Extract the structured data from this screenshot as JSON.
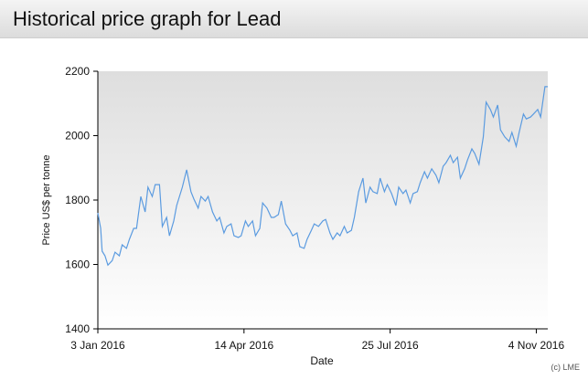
{
  "header": {
    "title": "Historical price graph for Lead"
  },
  "chart_data": {
    "type": "line",
    "y_label": "Price US$ per tonne",
    "x_label": "Date",
    "credit": "(c) LME",
    "color": "#5b9be0",
    "grid": false,
    "ylim": [
      1400,
      2200
    ],
    "yticks": [
      1400,
      1600,
      1800,
      2000,
      2200
    ],
    "xlim": [
      "2016-01-03",
      "2016-11-12"
    ],
    "xticks": [
      {
        "value": "2016-01-03",
        "label": "3 Jan 2016"
      },
      {
        "value": "2016-04-14",
        "label": "14 Apr 2016"
      },
      {
        "value": "2016-07-25",
        "label": "25 Jul 2016"
      },
      {
        "value": "2016-11-04",
        "label": "4 Nov 2016"
      }
    ],
    "x": [
      "2016-01-03",
      "2016-01-05",
      "2016-01-06",
      "2016-01-08",
      "2016-01-10",
      "2016-01-13",
      "2016-01-15",
      "2016-01-18",
      "2016-01-20",
      "2016-01-23",
      "2016-01-25",
      "2016-01-28",
      "2016-01-30",
      "2016-02-02",
      "2016-02-05",
      "2016-02-07",
      "2016-02-10",
      "2016-02-12",
      "2016-02-15",
      "2016-02-17",
      "2016-02-20",
      "2016-02-22",
      "2016-02-25",
      "2016-02-27",
      "2016-03-02",
      "2016-03-05",
      "2016-03-08",
      "2016-03-10",
      "2016-03-13",
      "2016-03-15",
      "2016-03-18",
      "2016-03-20",
      "2016-03-23",
      "2016-03-26",
      "2016-03-28",
      "2016-03-31",
      "2016-04-02",
      "2016-04-05",
      "2016-04-07",
      "2016-04-10",
      "2016-04-12",
      "2016-04-15",
      "2016-04-17",
      "2016-04-20",
      "2016-04-22",
      "2016-04-25",
      "2016-04-27",
      "2016-04-30",
      "2016-05-03",
      "2016-05-05",
      "2016-05-08",
      "2016-05-10",
      "2016-05-13",
      "2016-05-16",
      "2016-05-18",
      "2016-05-21",
      "2016-05-23",
      "2016-05-26",
      "2016-05-28",
      "2016-05-31",
      "2016-06-02",
      "2016-06-05",
      "2016-06-08",
      "2016-06-10",
      "2016-06-13",
      "2016-06-15",
      "2016-06-18",
      "2016-06-20",
      "2016-06-23",
      "2016-06-25",
      "2016-06-28",
      "2016-06-30",
      "2016-07-03",
      "2016-07-06",
      "2016-07-08",
      "2016-07-11",
      "2016-07-13",
      "2016-07-16",
      "2016-07-18",
      "2016-07-21",
      "2016-07-23",
      "2016-07-26",
      "2016-07-29",
      "2016-07-31",
      "2016-08-03",
      "2016-08-05",
      "2016-08-08",
      "2016-08-10",
      "2016-08-13",
      "2016-08-15",
      "2016-08-18",
      "2016-08-20",
      "2016-08-23",
      "2016-08-26",
      "2016-08-28",
      "2016-08-31",
      "2016-09-02",
      "2016-09-05",
      "2016-09-07",
      "2016-09-10",
      "2016-09-12",
      "2016-09-15",
      "2016-09-17",
      "2016-09-20",
      "2016-09-22",
      "2016-09-25",
      "2016-09-28",
      "2016-09-30",
      "2016-10-03",
      "2016-10-05",
      "2016-10-08",
      "2016-10-10",
      "2016-10-13",
      "2016-10-16",
      "2016-10-18",
      "2016-10-21",
      "2016-10-23",
      "2016-10-26",
      "2016-10-28",
      "2016-10-31",
      "2016-11-02",
      "2016-11-05",
      "2016-11-07",
      "2016-11-10",
      "2016-11-12"
    ],
    "values": [
      1760,
      1712,
      1641,
      1627,
      1598,
      1612,
      1638,
      1627,
      1661,
      1650,
      1678,
      1712,
      1712,
      1811,
      1763,
      1840,
      1811,
      1848,
      1848,
      1718,
      1746,
      1689,
      1735,
      1783,
      1840,
      1894,
      1826,
      1803,
      1775,
      1811,
      1797,
      1811,
      1763,
      1735,
      1746,
      1698,
      1718,
      1726,
      1689,
      1684,
      1689,
      1735,
      1718,
      1735,
      1689,
      1712,
      1791,
      1775,
      1746,
      1746,
      1755,
      1797,
      1726,
      1706,
      1689,
      1698,
      1655,
      1650,
      1678,
      1706,
      1726,
      1718,
      1735,
      1740,
      1698,
      1678,
      1698,
      1689,
      1718,
      1698,
      1706,
      1746,
      1826,
      1868,
      1791,
      1840,
      1826,
      1820,
      1868,
      1826,
      1848,
      1820,
      1783,
      1840,
      1820,
      1831,
      1791,
      1820,
      1826,
      1854,
      1888,
      1868,
      1897,
      1877,
      1854,
      1905,
      1916,
      1939,
      1916,
      1933,
      1868,
      1897,
      1925,
      1959,
      1945,
      1911,
      1996,
      2104,
      2081,
      2058,
      2095,
      2018,
      1996,
      1982,
      2010,
      1967,
      2010,
      2067,
      2052,
      2058,
      2067,
      2081,
      2058,
      2152,
      2152
    ]
  }
}
